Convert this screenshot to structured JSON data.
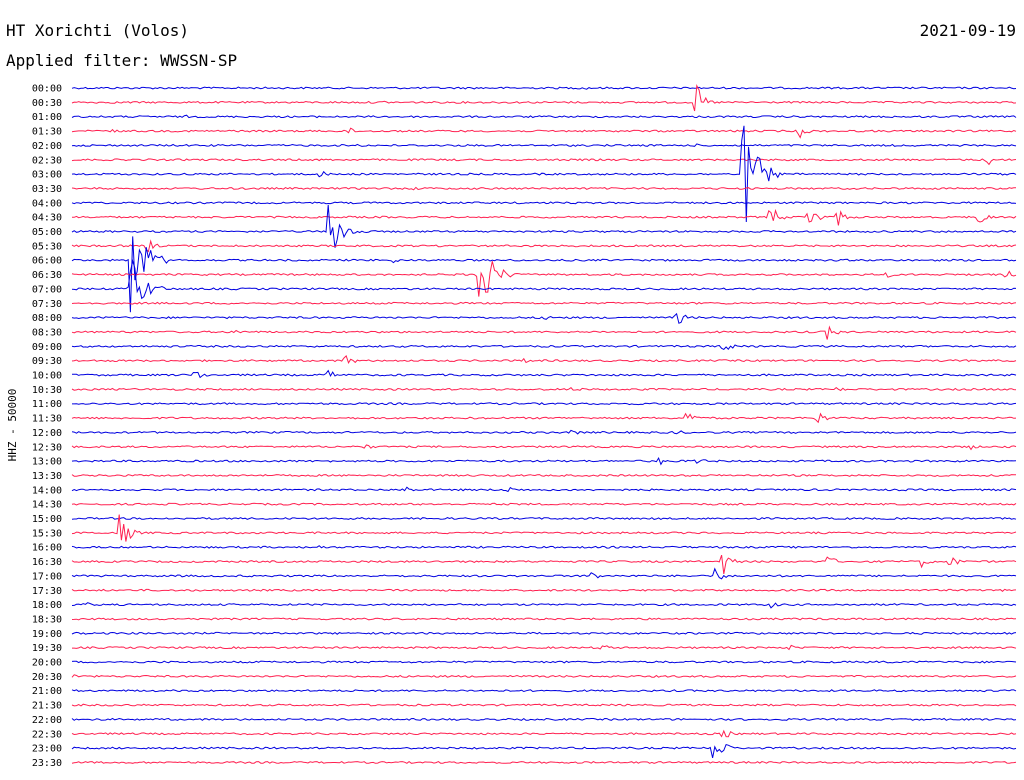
{
  "header": {
    "station": "HT Xorichti (Volos)",
    "filter": "Applied filter: WWSSN-SP",
    "date": "2021-09-19"
  },
  "chart_data": {
    "type": "line",
    "ylabel": "HHZ - 50000",
    "row_colors": [
      "#0000e0",
      "#ff2050"
    ],
    "rows": [
      {
        "label": "00:00",
        "events": [
          [
            0.54,
            3
          ]
        ]
      },
      {
        "label": "00:30",
        "events": [
          [
            0.66,
            22
          ],
          [
            0.05,
            2
          ],
          [
            0.33,
            2
          ]
        ]
      },
      {
        "label": "01:00",
        "events": [
          [
            0.12,
            2
          ]
        ]
      },
      {
        "label": "01:30",
        "events": [
          [
            0.29,
            6
          ],
          [
            0.77,
            8
          ],
          [
            0.04,
            3
          ],
          [
            0.17,
            2
          ]
        ]
      },
      {
        "label": "02:00",
        "events": [
          [
            0.3,
            3
          ],
          [
            0.66,
            2
          ]
        ]
      },
      {
        "label": "02:30",
        "events": [
          [
            0.97,
            7
          ]
        ]
      },
      {
        "label": "03:00",
        "events": [
          [
            0.71,
            70
          ],
          [
            0.26,
            6
          ]
        ]
      },
      {
        "label": "03:30",
        "events": [
          [
            0.36,
            3
          ]
        ]
      },
      {
        "label": "04:00",
        "events": []
      },
      {
        "label": "04:30",
        "events": [
          [
            0.74,
            14
          ],
          [
            0.78,
            18
          ],
          [
            0.81,
            12
          ],
          [
            0.96,
            10
          ]
        ]
      },
      {
        "label": "05:00",
        "events": [
          [
            0.27,
            36
          ]
        ]
      },
      {
        "label": "05:30",
        "events": [
          [
            0.08,
            8
          ]
        ]
      },
      {
        "label": "06:00",
        "events": [
          [
            0.06,
            70
          ],
          [
            0.34,
            3
          ]
        ]
      },
      {
        "label": "06:30",
        "events": [
          [
            0.43,
            45
          ],
          [
            0.86,
            5
          ],
          [
            0.99,
            5
          ]
        ]
      },
      {
        "label": "07:00",
        "events": [
          [
            0.06,
            40
          ]
        ]
      },
      {
        "label": "07:30",
        "events": []
      },
      {
        "label": "08:00",
        "events": [
          [
            0.64,
            10
          ],
          [
            0.5,
            4
          ]
        ]
      },
      {
        "label": "08:30",
        "events": [
          [
            0.8,
            10
          ],
          [
            0.17,
            4
          ]
        ]
      },
      {
        "label": "09:00",
        "events": [
          [
            0.69,
            8
          ]
        ]
      },
      {
        "label": "09:30",
        "events": [
          [
            0.29,
            7
          ],
          [
            0.48,
            4
          ]
        ]
      },
      {
        "label": "10:00",
        "events": [
          [
            0.13,
            8
          ],
          [
            0.27,
            7
          ]
        ]
      },
      {
        "label": "10:30",
        "events": [
          [
            0.53,
            4
          ],
          [
            0.81,
            4
          ]
        ]
      },
      {
        "label": "11:00",
        "events": []
      },
      {
        "label": "11:30",
        "events": [
          [
            0.65,
            10
          ],
          [
            0.79,
            8
          ]
        ]
      },
      {
        "label": "12:00",
        "events": [
          [
            0.53,
            4
          ],
          [
            0.64,
            4
          ]
        ]
      },
      {
        "label": "12:30",
        "events": [
          [
            0.31,
            4
          ],
          [
            0.95,
            4
          ]
        ]
      },
      {
        "label": "13:00",
        "events": [
          [
            0.62,
            6
          ],
          [
            0.66,
            6
          ]
        ]
      },
      {
        "label": "13:30",
        "events": []
      },
      {
        "label": "14:00",
        "events": [
          [
            0.35,
            6
          ],
          [
            0.46,
            6
          ]
        ]
      },
      {
        "label": "14:30",
        "events": []
      },
      {
        "label": "15:00",
        "events": []
      },
      {
        "label": "15:30",
        "events": [
          [
            0.05,
            28
          ]
        ]
      },
      {
        "label": "16:00",
        "events": [
          [
            0.26,
            3
          ]
        ]
      },
      {
        "label": "16:30",
        "events": [
          [
            0.69,
            14
          ],
          [
            0.8,
            8
          ],
          [
            0.9,
            6
          ],
          [
            0.93,
            8
          ]
        ]
      },
      {
        "label": "17:00",
        "events": [
          [
            0.55,
            6
          ],
          [
            0.68,
            10
          ]
        ]
      },
      {
        "label": "17:30",
        "events": [
          [
            0.98,
            6
          ]
        ]
      },
      {
        "label": "18:00",
        "events": [
          [
            0.01,
            5
          ],
          [
            0.74,
            4
          ]
        ]
      },
      {
        "label": "18:30",
        "events": []
      },
      {
        "label": "19:00",
        "events": []
      },
      {
        "label": "19:30",
        "events": [
          [
            0.56,
            5
          ],
          [
            0.76,
            4
          ]
        ]
      },
      {
        "label": "20:00",
        "events": [
          [
            0.86,
            3
          ]
        ]
      },
      {
        "label": "20:30",
        "events": [
          [
            0.0,
            3
          ]
        ]
      },
      {
        "label": "21:00",
        "events": []
      },
      {
        "label": "21:30",
        "events": []
      },
      {
        "label": "22:00",
        "events": []
      },
      {
        "label": "22:30",
        "events": [
          [
            0.69,
            6
          ]
        ]
      },
      {
        "label": "23:00",
        "events": [
          [
            0.68,
            26
          ]
        ]
      },
      {
        "label": "23:30",
        "events": []
      }
    ]
  }
}
